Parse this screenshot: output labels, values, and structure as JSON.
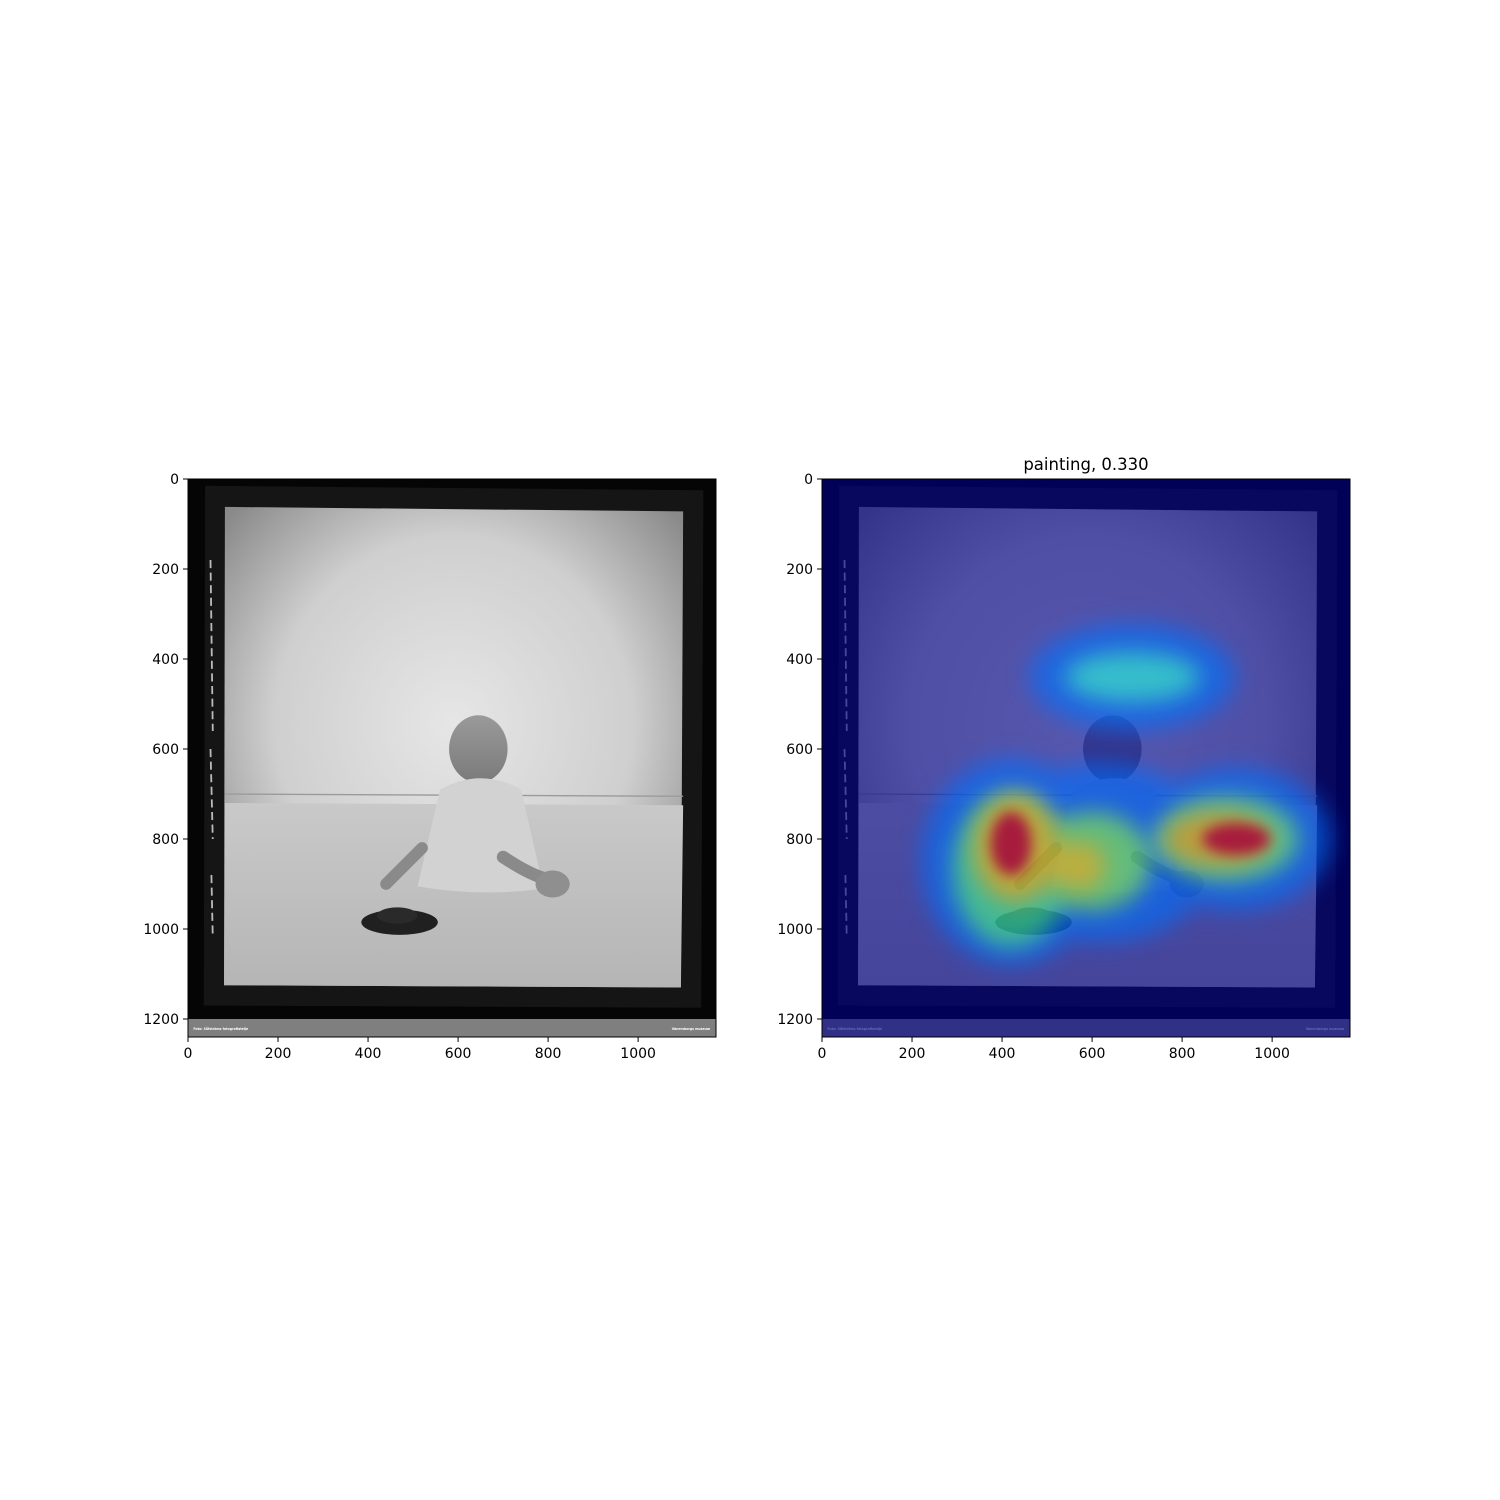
{
  "chart_data": [
    {
      "type": "image",
      "title": "",
      "xlim": [
        0,
        1173
      ],
      "ylim": [
        1240,
        0
      ],
      "x_ticks": [
        0,
        200,
        400,
        600,
        800,
        1000
      ],
      "y_ticks": [
        0,
        200,
        400,
        600,
        800,
        1000,
        1200
      ],
      "content": "black-and-white studio photo of a baby sitting on a sheet with a toy car in front",
      "credit_left": "Foto: Såfströms fotografiatelje",
      "credit_right": "Vänersborgs museum"
    },
    {
      "type": "heatmap",
      "title": "painting, 0.330",
      "xlim": [
        0,
        1173
      ],
      "ylim": [
        1240,
        0
      ],
      "x_ticks": [
        0,
        200,
        400,
        600,
        800,
        1000
      ],
      "y_ticks": [
        0,
        200,
        400,
        600,
        800,
        1000,
        1200
      ],
      "colormap": "jet",
      "overlay_of": "same photo",
      "hotspots": [
        {
          "x": 420,
          "y": 810,
          "intensity": 1.0
        },
        {
          "x": 920,
          "y": 800,
          "intensity": 1.0
        },
        {
          "x": 700,
          "y": 440,
          "intensity": 0.5
        },
        {
          "x": 560,
          "y": 850,
          "intensity": 0.7
        },
        {
          "x": 420,
          "y": 960,
          "intensity": 0.5
        }
      ],
      "credit_left": "Foto: Såfströms fotografiatelje",
      "credit_right": "Vänersborgs museum"
    }
  ]
}
